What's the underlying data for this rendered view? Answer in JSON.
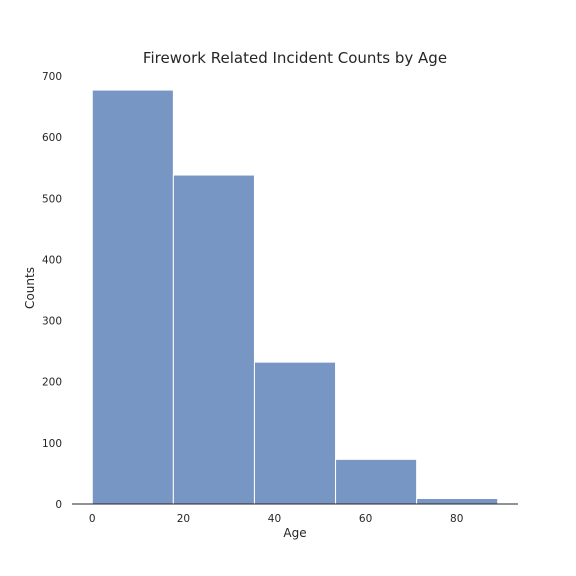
{
  "chart_data": {
    "type": "bar",
    "title": "Firework Related Incident Counts by Age",
    "xlabel": "Age",
    "ylabel": "Counts",
    "bins": [
      {
        "start": 0,
        "end": 17.8,
        "value": 677
      },
      {
        "start": 17.8,
        "end": 35.6,
        "value": 538
      },
      {
        "start": 35.6,
        "end": 53.4,
        "value": 232
      },
      {
        "start": 53.4,
        "end": 71.2,
        "value": 73
      },
      {
        "start": 71.2,
        "end": 89,
        "value": 9
      }
    ],
    "xlim": [
      -4.45,
      93.45
    ],
    "ylim": [
      0,
      700
    ],
    "xticks": [
      0,
      20,
      40,
      60,
      80
    ],
    "yticks": [
      0,
      100,
      200,
      300,
      400,
      500,
      600,
      700
    ],
    "grid": false,
    "bar_color": "#7896c4"
  }
}
